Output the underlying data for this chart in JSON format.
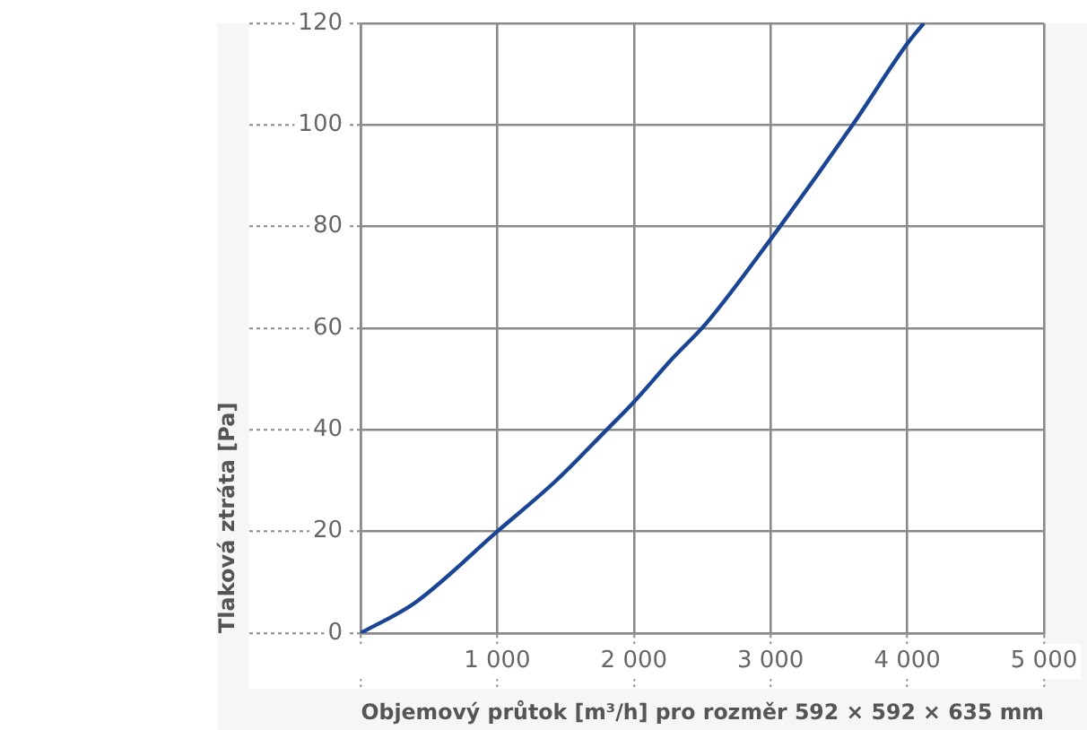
{
  "chart_data": {
    "type": "line",
    "xlabel": "Objemový průtok [m³/h] pro rozměr 592 × 592 × 635 mm",
    "ylabel": "Tlaková ztráta [Pa]",
    "x": [
      0,
      400,
      1000,
      1430,
      1800,
      2000,
      2280,
      2530,
      3000,
      3600,
      4000,
      4120
    ],
    "series": [
      {
        "color": "#1a4494",
        "values": [
          0,
          6,
          20,
          30,
          40,
          45.5,
          54,
          61,
          77.5,
          100,
          116,
          120
        ]
      }
    ],
    "xlim": [
      0,
      5000
    ],
    "ylim": [
      0,
      120
    ],
    "xticks": [
      {
        "value": 0,
        "label": null
      },
      {
        "value": 1000,
        "label": "1 000"
      },
      {
        "value": 2000,
        "label": "2 000"
      },
      {
        "value": 3000,
        "label": "3 000"
      },
      {
        "value": 4000,
        "label": "4 000"
      },
      {
        "value": 5000,
        "label": "5 000"
      }
    ],
    "yticks": [
      0,
      20,
      40,
      60,
      80,
      100,
      120
    ],
    "grid": true,
    "legend": false,
    "marker": "none",
    "line_style": "solid"
  }
}
